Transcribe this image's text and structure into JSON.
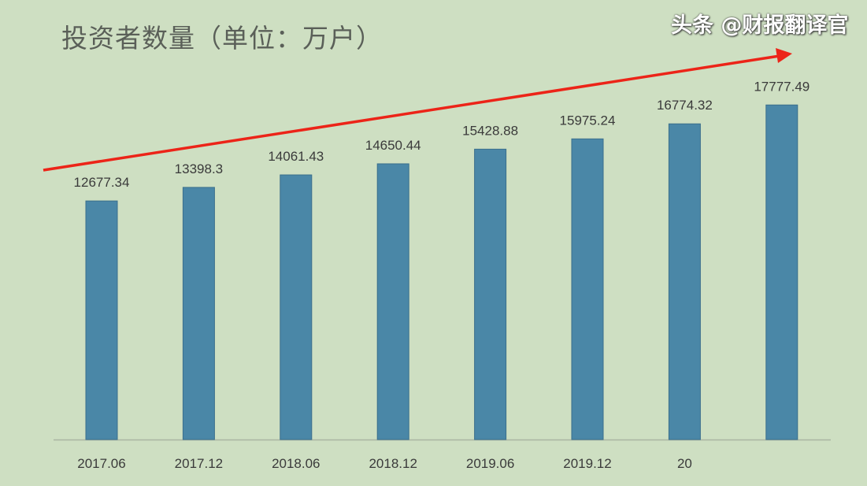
{
  "chart_data": {
    "type": "bar",
    "title": "投资者数量（单位：万户）",
    "categories": [
      "2017.06",
      "2017.12",
      "2018.06",
      "2018.12",
      "2019.06",
      "2019.12",
      "20",
      ""
    ],
    "values": [
      12677.34,
      13398.3,
      14061.43,
      14650.44,
      15428.88,
      15975.24,
      16774.32,
      17777.49
    ],
    "value_labels": [
      "12677.34",
      "13398.3",
      "14061.43",
      "14650.44",
      "15428.88",
      "15975.24",
      "16774.32",
      "17777.49"
    ],
    "ylim": [
      0,
      18500
    ],
    "grid": false,
    "legend": "none",
    "annotation": "red upward trend arrow",
    "colors": {
      "bar": "#4a87a7",
      "arrow": "#ec2418",
      "background": "#cedfc2"
    }
  },
  "watermark": "头条 @财报翻译官"
}
